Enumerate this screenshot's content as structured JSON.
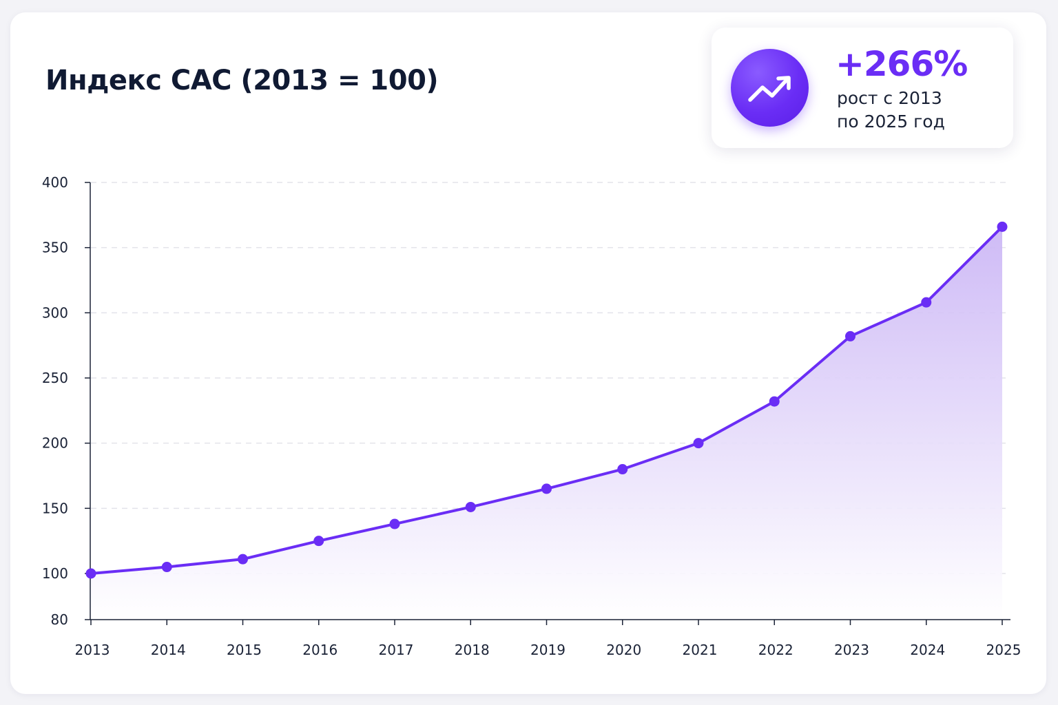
{
  "title": "Индекс CAC (2013 = 100)",
  "stat": {
    "value": "+266%",
    "caption_line1": "рост с 2013",
    "caption_line2": "по 2025 год",
    "icon": "trending-up-icon"
  },
  "colors": {
    "accent": "#6a2df5",
    "line": "#6a2df5",
    "fill_top": "#c9b3f5",
    "fill_bottom": "#ffffff",
    "grid": "#e3e3ea",
    "axis": "#1a2236"
  },
  "chart_data": {
    "type": "line",
    "title": "Индекс CAC (2013 = 100)",
    "xlabel": "",
    "ylabel": "",
    "x": [
      "2013",
      "2014",
      "2015",
      "2016",
      "2017",
      "2018",
      "2019",
      "2020",
      "2021",
      "2022",
      "2023",
      "2024",
      "2025"
    ],
    "series": [
      {
        "values": [
          100,
          105,
          111,
          125,
          138,
          151,
          165,
          180,
          200,
          232,
          282,
          308,
          366
        ]
      }
    ],
    "ylim": [
      80,
      400
    ],
    "y_ticks": [
      80,
      100,
      150,
      200,
      250,
      300,
      350,
      400
    ],
    "grid": true,
    "area_fill": true,
    "legend": "none"
  }
}
